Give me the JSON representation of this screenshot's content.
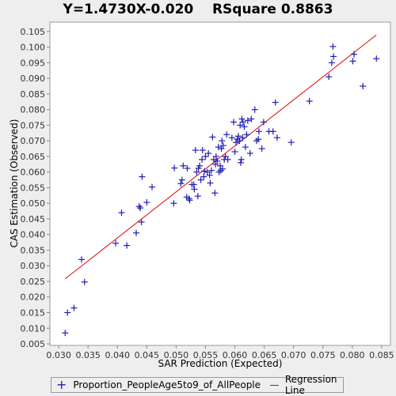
{
  "title_left": "Y=1.4730X-0.020",
  "title_right": "RSquare 0.8863",
  "chart_data": {
    "type": "scatter",
    "title": "Y=1.4730X-0.020    RSquare 0.8863",
    "xlabel": "SAR Prediction (Expected)",
    "ylabel": "CAS Estimation (Observed)",
    "xlim": [
      0.0285,
      0.0865
    ],
    "ylim": [
      0.0045,
      0.108
    ],
    "xticks": [
      "0.030",
      "0.035",
      "0.040",
      "0.045",
      "0.050",
      "0.055",
      "0.060",
      "0.065",
      "0.070",
      "0.075",
      "0.080",
      "0.085"
    ],
    "yticks": [
      "0.005",
      "0.010",
      "0.015",
      "0.020",
      "0.025",
      "0.030",
      "0.035",
      "0.040",
      "0.045",
      "0.050",
      "0.055",
      "0.060",
      "0.065",
      "0.070",
      "0.075",
      "0.080",
      "0.085",
      "0.090",
      "0.095",
      "0.100",
      "0.105"
    ],
    "grid": false,
    "legend_position": "bottom",
    "series": [
      {
        "name": "Proportion_PeopleAge5to9_of_AllPeople",
        "color": "#1f1fb4",
        "marker": "plus",
        "points": [
          [
            0.0311,
            0.0085
          ],
          [
            0.0315,
            0.015
          ],
          [
            0.0326,
            0.0165
          ],
          [
            0.0339,
            0.032
          ],
          [
            0.0344,
            0.0248
          ],
          [
            0.0397,
            0.0372
          ],
          [
            0.0407,
            0.047
          ],
          [
            0.0416,
            0.0365
          ],
          [
            0.0432,
            0.0405
          ],
          [
            0.0437,
            0.049
          ],
          [
            0.0439,
            0.0485
          ],
          [
            0.0441,
            0.044
          ],
          [
            0.0442,
            0.0585
          ],
          [
            0.045,
            0.0503
          ],
          [
            0.0459,
            0.0552
          ],
          [
            0.0496,
            0.05
          ],
          [
            0.0497,
            0.0613
          ],
          [
            0.0508,
            0.0563
          ],
          [
            0.051,
            0.0575
          ],
          [
            0.0512,
            0.062
          ],
          [
            0.0518,
            0.052
          ],
          [
            0.0519,
            0.0612
          ],
          [
            0.0522,
            0.0515
          ],
          [
            0.0523,
            0.051
          ],
          [
            0.0527,
            0.056
          ],
          [
            0.053,
            0.056
          ],
          [
            0.0531,
            0.0545
          ],
          [
            0.0533,
            0.067
          ],
          [
            0.0535,
            0.06
          ],
          [
            0.0537,
            0.0523
          ],
          [
            0.0538,
            0.0612
          ],
          [
            0.054,
            0.062
          ],
          [
            0.0542,
            0.0575
          ],
          [
            0.0544,
            0.064
          ],
          [
            0.0545,
            0.067
          ],
          [
            0.0547,
            0.0585
          ],
          [
            0.0548,
            0.0603
          ],
          [
            0.055,
            0.065
          ],
          [
            0.0553,
            0.06
          ],
          [
            0.0555,
            0.066
          ],
          [
            0.0557,
            0.059
          ],
          [
            0.0558,
            0.0565
          ],
          [
            0.056,
            0.0605
          ],
          [
            0.0562,
            0.0712
          ],
          [
            0.0564,
            0.064
          ],
          [
            0.0566,
            0.0533
          ],
          [
            0.0567,
            0.0625
          ],
          [
            0.0568,
            0.065
          ],
          [
            0.057,
            0.0635
          ],
          [
            0.0572,
            0.068
          ],
          [
            0.0573,
            0.06
          ],
          [
            0.0575,
            0.062
          ],
          [
            0.0576,
            0.0605
          ],
          [
            0.0577,
            0.0675
          ],
          [
            0.0578,
            0.07
          ],
          [
            0.0579,
            0.061
          ],
          [
            0.058,
            0.0685
          ],
          [
            0.0582,
            0.064
          ],
          [
            0.0584,
            0.065
          ],
          [
            0.0586,
            0.072
          ],
          [
            0.0588,
            0.064
          ],
          [
            0.0595,
            0.071
          ],
          [
            0.0598,
            0.076
          ],
          [
            0.06,
            0.0665
          ],
          [
            0.0602,
            0.0695
          ],
          [
            0.0604,
            0.0705
          ],
          [
            0.0606,
            0.0715
          ],
          [
            0.0608,
            0.07
          ],
          [
            0.0609,
            0.075
          ],
          [
            0.061,
            0.063
          ],
          [
            0.0611,
            0.064
          ],
          [
            0.0612,
            0.077
          ],
          [
            0.0613,
            0.071
          ],
          [
            0.0614,
            0.076
          ],
          [
            0.0616,
            0.0745
          ],
          [
            0.0618,
            0.068
          ],
          [
            0.062,
            0.072
          ],
          [
            0.0622,
            0.0765
          ],
          [
            0.0626,
            0.066
          ],
          [
            0.0628,
            0.077
          ],
          [
            0.0634,
            0.08
          ],
          [
            0.0637,
            0.07
          ],
          [
            0.064,
            0.0705
          ],
          [
            0.0641,
            0.073
          ],
          [
            0.0646,
            0.0675
          ],
          [
            0.0649,
            0.076
          ],
          [
            0.0658,
            0.073
          ],
          [
            0.0665,
            0.073
          ],
          [
            0.0669,
            0.0823
          ],
          [
            0.0672,
            0.071
          ],
          [
            0.0696,
            0.0695
          ],
          [
            0.0727,
            0.0827
          ],
          [
            0.076,
            0.0905
          ],
          [
            0.0765,
            0.095
          ],
          [
            0.0767,
            0.1002
          ],
          [
            0.0768,
            0.097
          ],
          [
            0.0801,
            0.0955
          ],
          [
            0.0803,
            0.0977
          ],
          [
            0.0818,
            0.0875
          ],
          [
            0.0841,
            0.0963
          ]
        ]
      }
    ],
    "regression_line": {
      "name": "Regression Line",
      "color": "#e00000",
      "slope": 1.473,
      "intercept": -0.02,
      "x_range": [
        0.0311,
        0.0841
      ]
    }
  },
  "legend": {
    "series_label": "Proportion_PeopleAge5to9_of_AllPeople",
    "line_label": "Regression Line"
  }
}
